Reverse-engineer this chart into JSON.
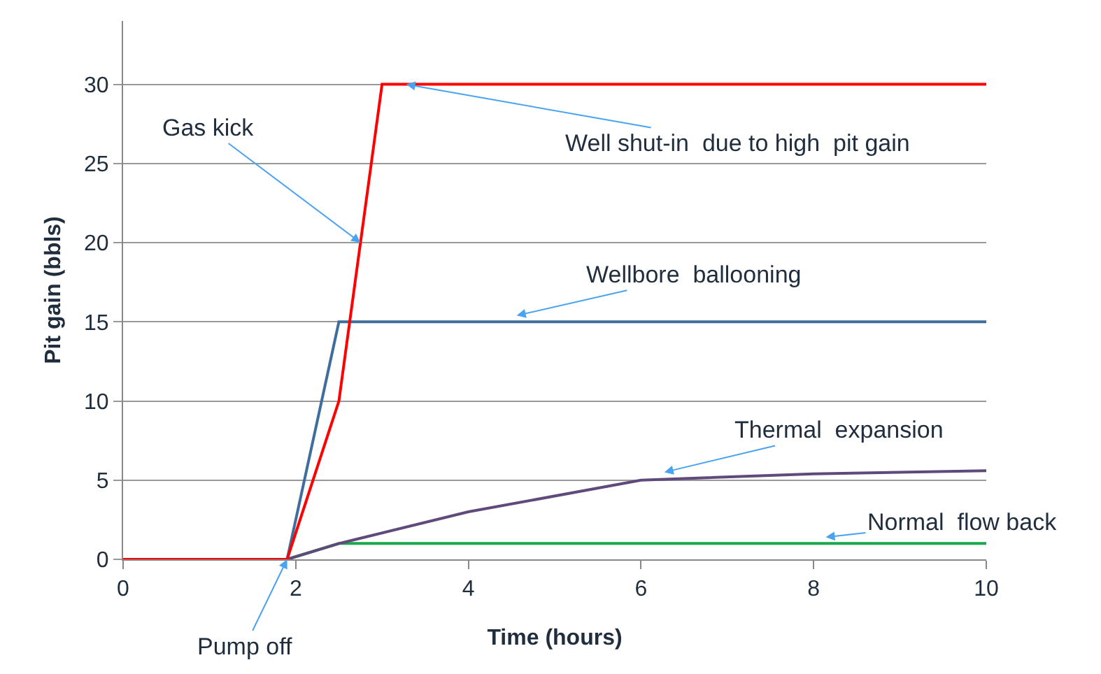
{
  "chart_data": {
    "type": "line",
    "xlabel": "Time (hours)",
    "ylabel": "Pit gain (bbls)",
    "xlim": [
      0,
      10
    ],
    "xticks": [
      0,
      2,
      4,
      6,
      8,
      10
    ],
    "ylim": [
      0,
      34
    ],
    "yticks": [
      0,
      5,
      10,
      15,
      20,
      25,
      30
    ],
    "grid": "y",
    "marker": "none",
    "line_style": "solid",
    "series": [
      {
        "color": "#1aa64a",
        "x": [
          0,
          1.9,
          2.5,
          10
        ],
        "values": [
          0,
          0,
          1,
          1
        ]
      },
      {
        "color": "#5f4a7b",
        "x": [
          0,
          1.9,
          2.5,
          4,
          6,
          8,
          10
        ],
        "values": [
          0,
          0,
          1,
          3,
          5,
          5.4,
          5.6
        ]
      },
      {
        "color": "#3f6e9e",
        "x": [
          0,
          1.9,
          2.5,
          10
        ],
        "values": [
          0,
          0,
          15,
          15
        ]
      },
      {
        "color": "#ff0000",
        "x": [
          0,
          1.9,
          2.5,
          3,
          10
        ],
        "values": [
          0,
          0,
          10,
          30,
          30
        ]
      }
    ],
    "annotations": [
      {
        "text": "Gas kick",
        "x": 2.75,
        "y": 20
      },
      {
        "text": "Well shut-in  due to high  pit gain",
        "x": 3.28,
        "y": 30
      },
      {
        "text": "Wellbore  ballooning",
        "x": 4.56,
        "y": 15.4
      },
      {
        "text": "Thermal  expansion",
        "x": 6.27,
        "y": 5.5
      },
      {
        "text": "Normal  flow back",
        "x": 8.14,
        "y": 1.4
      },
      {
        "text": "Pump off",
        "x": 1.9,
        "y": 0
      }
    ]
  }
}
